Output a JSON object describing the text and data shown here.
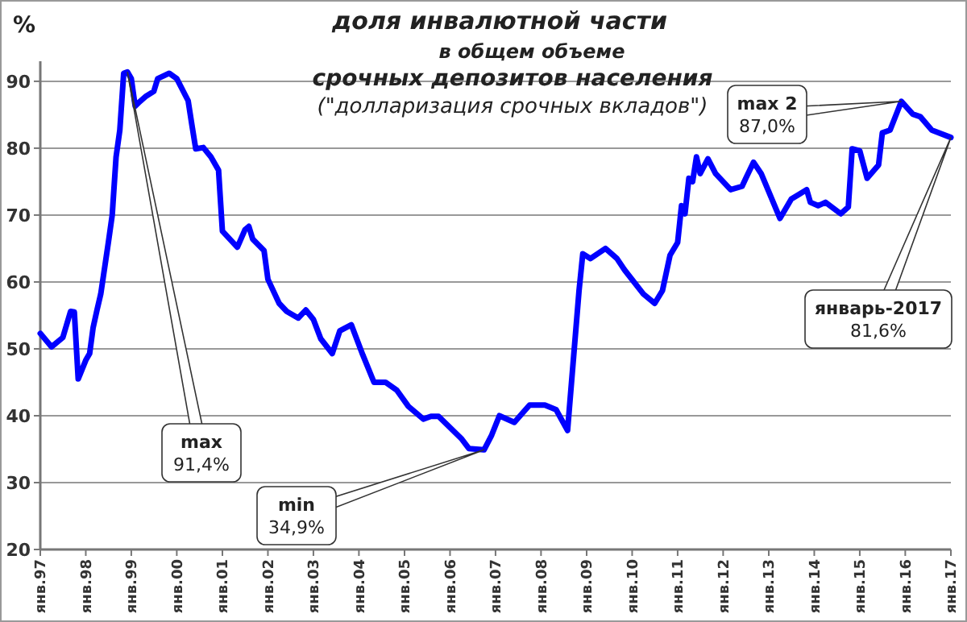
{
  "chart_data": {
    "type": "line",
    "title": "доля инвалютной части",
    "subtitle": "в общем объеме\nсрочных депозитов населения\n(\"долларизация срочных вкладов\")",
    "ylabel": "%",
    "x": [
      "1997-01",
      "1997-04",
      "1997-07",
      "1997-09",
      "1997-10",
      "1997-11",
      "1998-01",
      "1998-02",
      "1998-03",
      "1998-04",
      "1998-05",
      "1998-07",
      "1998-08",
      "1998-09",
      "1998-10",
      "1998-11",
      "1998-12",
      "1999-01",
      "1999-02",
      "1999-03",
      "1999-05",
      "1999-07",
      "1999-08",
      "1999-11",
      "2000-01",
      "2000-04",
      "2000-05",
      "2000-06",
      "2000-08",
      "2000-10",
      "2000-12",
      "2001-01",
      "2001-05",
      "2001-07",
      "2001-08",
      "2001-09",
      "2001-12",
      "2002-01",
      "2002-04",
      "2002-06",
      "2002-09",
      "2002-11",
      "2003-01",
      "2003-03",
      "2003-06",
      "2003-08",
      "2003-11",
      "2004-02",
      "2004-05",
      "2004-08",
      "2004-11",
      "2005-02",
      "2005-06",
      "2005-08",
      "2005-10",
      "2006-04",
      "2006-06",
      "2006-10",
      "2006-12",
      "2007-02",
      "2007-06",
      "2007-10",
      "2008-02",
      "2008-05",
      "2008-08",
      "2008-11",
      "2008-12",
      "2009-02",
      "2009-06",
      "2009-09",
      "2009-11",
      "2010-04",
      "2010-07",
      "2010-09",
      "2010-11",
      "2011-01",
      "2011-02",
      "2011-03",
      "2011-04",
      "2011-05",
      "2011-06",
      "2011-07",
      "2011-09",
      "2011-11",
      "2012-03",
      "2012-06",
      "2012-07",
      "2012-09",
      "2012-11",
      "2013-04",
      "2013-07",
      "2013-09",
      "2013-11",
      "2013-12",
      "2014-02",
      "2014-04",
      "2014-08",
      "2014-10",
      "2014-11",
      "2015-01",
      "2015-03",
      "2015-06",
      "2015-07",
      "2015-09",
      "2015-12",
      "2016-03",
      "2016-05",
      "2016-08",
      "2017-01"
    ],
    "series": [
      {
        "color": "#0000ff",
        "values": [
          52.3,
          50.3,
          51.7,
          55.6,
          55.5,
          45.5,
          48.3,
          49.3,
          53.2,
          55.8,
          58.2,
          65.9,
          70.0,
          78.7,
          82.7,
          91.2,
          91.4,
          90.4,
          86.3,
          86.8,
          87.8,
          88.5,
          90.4,
          91.2,
          90.4,
          87.1,
          83.5,
          79.9,
          80.1,
          78.7,
          76.7,
          67.6,
          65.2,
          67.8,
          68.3,
          66.4,
          64.7,
          60.4,
          56.8,
          55.6,
          54.6,
          55.8,
          54.4,
          51.5,
          49.3,
          52.7,
          53.6,
          49.1,
          45.0,
          45.0,
          43.8,
          41.4,
          39.5,
          39.9,
          39.9,
          36.6,
          35.1,
          34.9,
          37.1,
          40.0,
          39.0,
          41.6,
          41.6,
          40.9,
          37.8,
          58.7,
          64.2,
          63.5,
          65.0,
          63.5,
          61.8,
          58.2,
          56.8,
          58.7,
          64.0,
          65.9,
          71.4,
          70.2,
          75.5,
          75.0,
          78.7,
          76.2,
          78.4,
          76.2,
          73.8,
          74.3,
          75.5,
          77.9,
          76.2,
          69.5,
          72.4,
          73.1,
          73.8,
          71.9,
          71.4,
          71.9,
          70.2,
          71.2,
          79.9,
          79.6,
          75.5,
          77.5,
          82.3,
          82.7,
          87.0,
          85.1,
          84.7,
          82.7,
          81.6
        ]
      }
    ],
    "xlim": [
      "1997-01",
      "2017-01"
    ],
    "xticks": [
      {
        "value": "1997-01",
        "label": "янв.97"
      },
      {
        "value": "1998-01",
        "label": "янв.98"
      },
      {
        "value": "1999-01",
        "label": "янв.99"
      },
      {
        "value": "2000-01",
        "label": "янв.00"
      },
      {
        "value": "2001-01",
        "label": "янв.01"
      },
      {
        "value": "2002-01",
        "label": "янв.02"
      },
      {
        "value": "2003-01",
        "label": "янв.03"
      },
      {
        "value": "2004-01",
        "label": "янв.04"
      },
      {
        "value": "2005-01",
        "label": "янв.05"
      },
      {
        "value": "2006-01",
        "label": "янв.06"
      },
      {
        "value": "2007-01",
        "label": "янв.07"
      },
      {
        "value": "2008-01",
        "label": "янв.08"
      },
      {
        "value": "2009-01",
        "label": "янв.09"
      },
      {
        "value": "2010-01",
        "label": "янв.10"
      },
      {
        "value": "2011-01",
        "label": "янв.11"
      },
      {
        "value": "2012-01",
        "label": "янв.12"
      },
      {
        "value": "2013-01",
        "label": "янв.13"
      },
      {
        "value": "2014-01",
        "label": "янв.14"
      },
      {
        "value": "2015-01",
        "label": "янв.15"
      },
      {
        "value": "2016-01",
        "label": "янв.16"
      },
      {
        "value": "2017-01",
        "label": "янв.17"
      }
    ],
    "ylim": [
      20,
      93
    ],
    "yticks": [
      20,
      30,
      40,
      50,
      60,
      70,
      80,
      90
    ],
    "grid": "y",
    "line_style": "solid",
    "marker": "none",
    "annotations": [
      {
        "text": "max\n91,4%",
        "x": "1998-12",
        "y": 91.4
      },
      {
        "text": "min\n34,9%",
        "x": "2006-10",
        "y": 34.9
      },
      {
        "text": "max 2\n87,0%",
        "x": "2015-12",
        "y": 87.0
      },
      {
        "text": "январь-2017\n81,6%",
        "x": "2017-01",
        "y": 81.6
      }
    ]
  }
}
